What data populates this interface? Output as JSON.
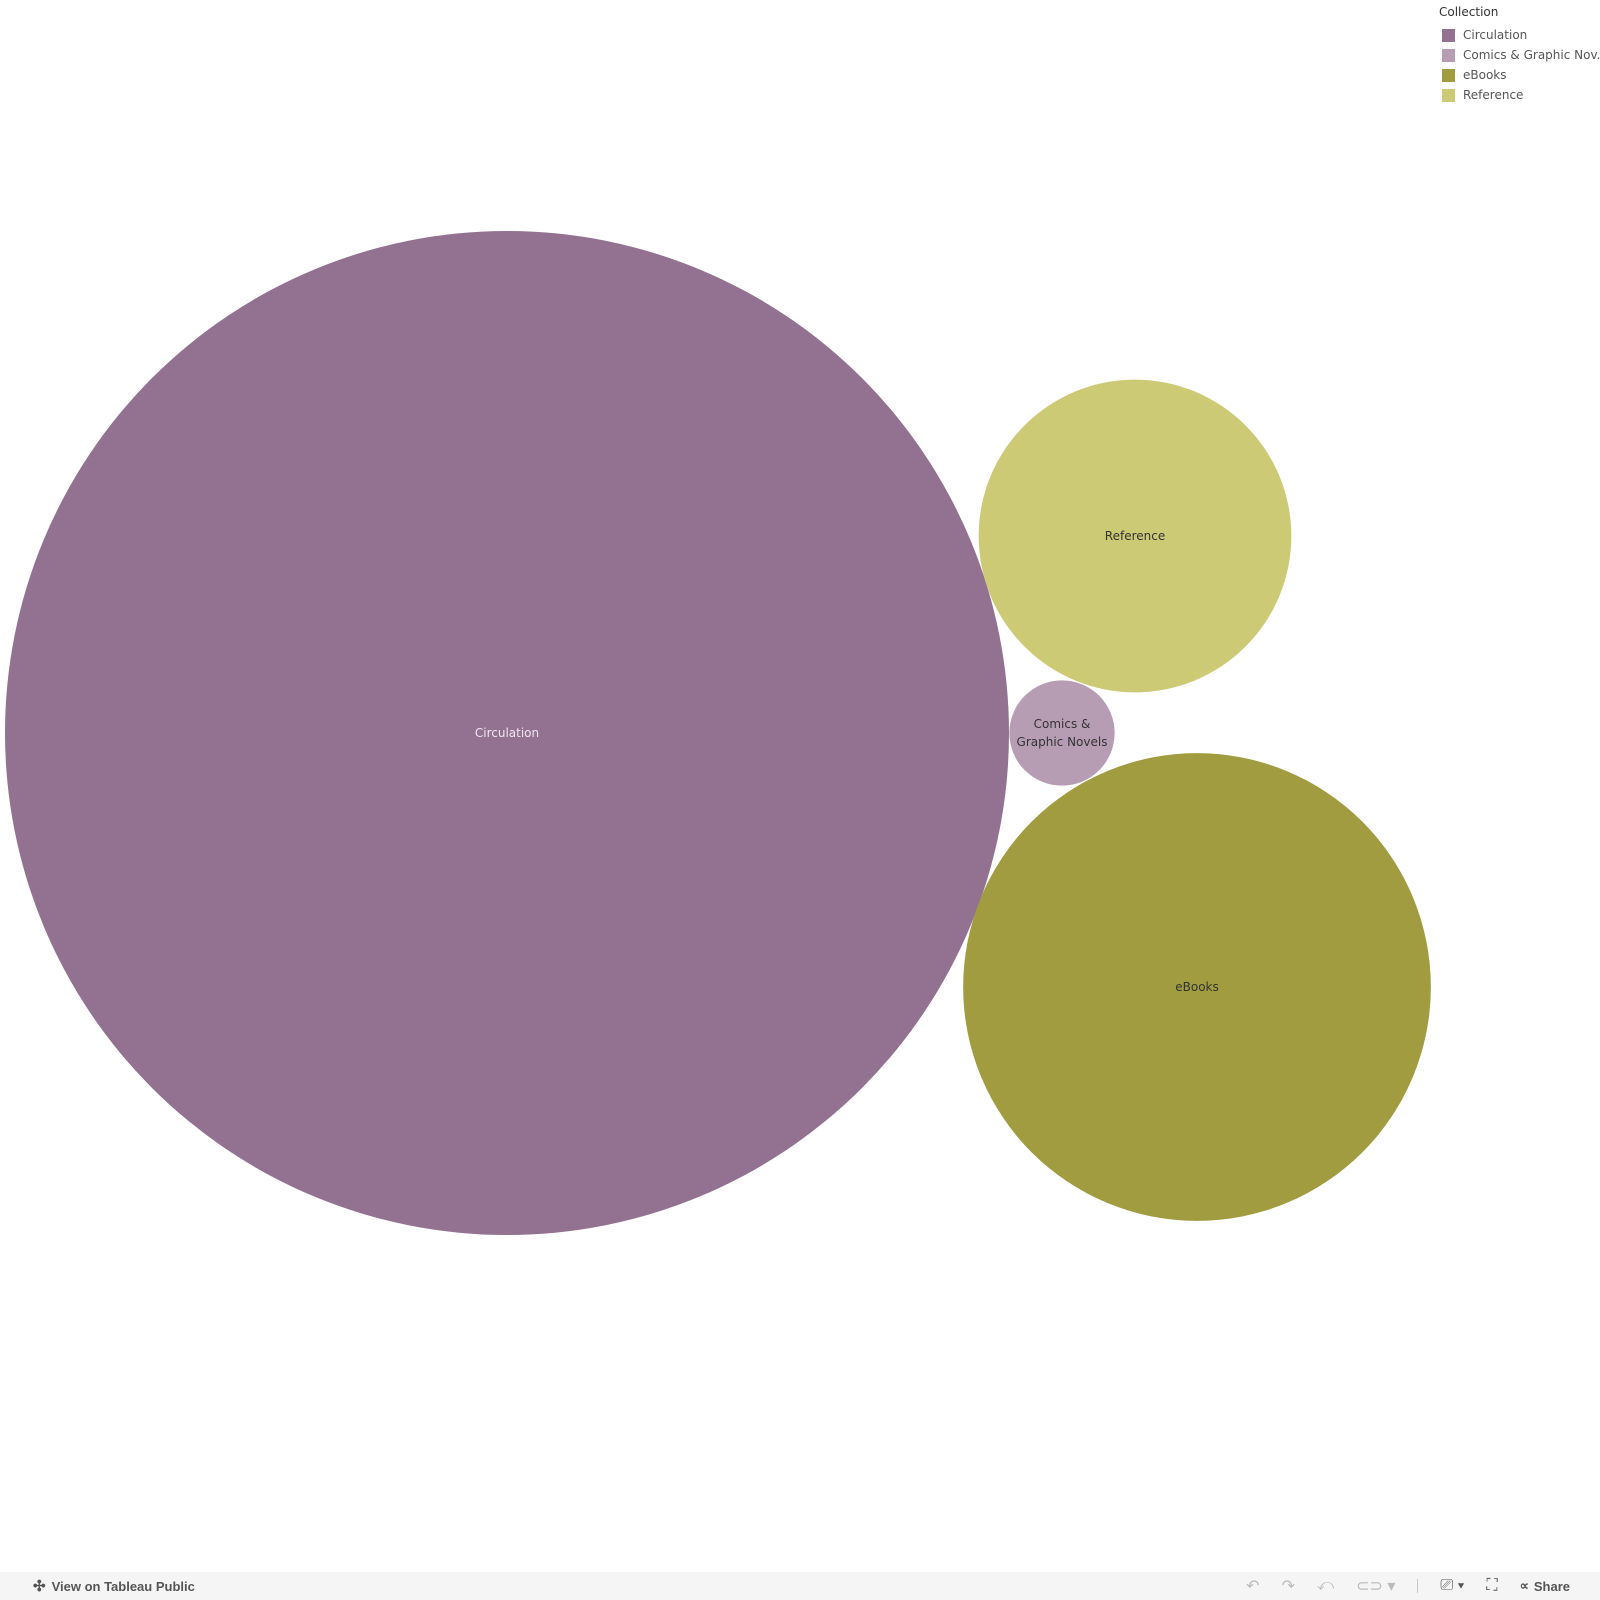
{
  "chart_data": {
    "type": "bubble",
    "title": "",
    "legend": {
      "title": "Collection",
      "placement": "top-right"
    },
    "series": [
      {
        "name": "Circulation",
        "label": "Circulation",
        "relative_size": 100,
        "color": "#937291",
        "label_color": "#f0e6ee"
      },
      {
        "name": "Comics & Graphic Novels",
        "legend_label": "Comics & Graphic Nov...",
        "label_lines": [
          "Comics &",
          "Graphic Novels"
        ],
        "relative_size": 1.1,
        "color": "#b79db4",
        "label_color": "#333333"
      },
      {
        "name": "eBooks",
        "label": "eBooks",
        "relative_size": 21.7,
        "color": "#a09c3f",
        "label_color": "#333333"
      },
      {
        "name": "Reference",
        "label": "Reference",
        "relative_size": 9.7,
        "color": "#cdca76",
        "label_color": "#333333"
      }
    ]
  },
  "toolbar": {
    "view_label": "View on Tableau Public",
    "share_label": "Share",
    "icons": [
      "undo-icon",
      "redo-icon",
      "revert-icon",
      "refresh-icon",
      "download-icon",
      "fullscreen-icon",
      "share-icon"
    ]
  }
}
